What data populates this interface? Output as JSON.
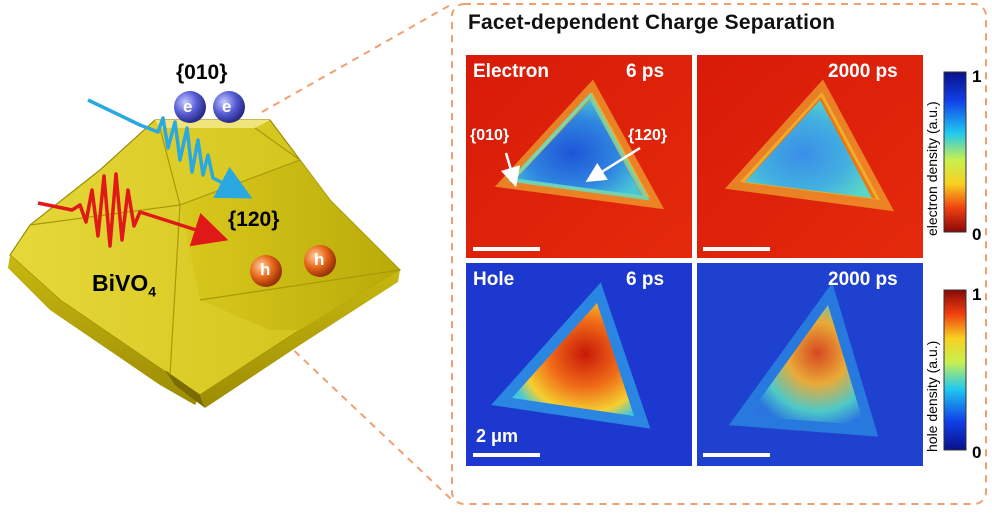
{
  "title": "Facet-dependent  Charge Separation",
  "crystal": {
    "material": "BiVO",
    "subscript": "4",
    "facet_top": "{010}",
    "facet_side": "{120}",
    "electron_symbol": "e",
    "hole_symbol": "h",
    "electron_count": 2,
    "hole_count": 2
  },
  "panels": {
    "electron_6ps": {
      "carrier": "Electron",
      "time": "6 ps"
    },
    "electron_2000ps": {
      "time": "2000 ps"
    },
    "hole_6ps": {
      "carrier": "Hole",
      "time": "6 ps"
    },
    "hole_2000ps": {
      "time": "2000 ps"
    },
    "facet_label_010": "{010}",
    "facet_label_120": "{120}",
    "scale_bar": "2 μm"
  },
  "colorbars": {
    "electron": {
      "title": "electron density (a.u.)",
      "max": "1",
      "min": "0"
    },
    "hole": {
      "title": "hole density (a.u.)",
      "max": "1",
      "min": "0"
    }
  },
  "colors": {
    "crystal": "#d8c81c",
    "electron": "#5a5fd6",
    "hole": "#e8681a",
    "pulse_blue": "#2aa8e0",
    "pulse_red": "#e01818",
    "frame": "#f0a070"
  }
}
